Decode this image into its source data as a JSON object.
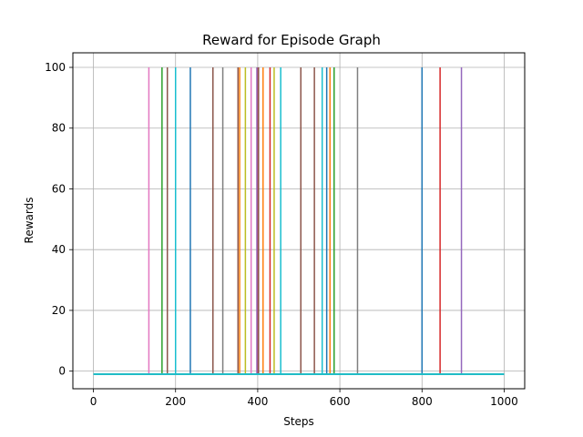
{
  "chart_data": {
    "type": "line",
    "title": "Reward for Episode Graph",
    "xlabel": "Steps",
    "ylabel": "Rewards",
    "xlim": [
      -50,
      1050
    ],
    "ylim": [
      -5.8,
      104.8
    ],
    "xticks": [
      0,
      200,
      400,
      600,
      800,
      1000
    ],
    "yticks": [
      0,
      20,
      40,
      60,
      80,
      100
    ],
    "grid": true,
    "legend": "none",
    "baseline": {
      "x_start": 0,
      "x_end": 1000,
      "y": -1
    },
    "spike_value": 100,
    "series": [
      {
        "color": "#1f77b4",
        "spike_step": 236
      },
      {
        "color": "#1f77b4",
        "spike_step": 568
      },
      {
        "color": "#1f77b4",
        "spike_step": 800
      },
      {
        "color": "#ff7f0e",
        "spike_step": 356
      },
      {
        "color": "#ff7f0e",
        "spike_step": 413
      },
      {
        "color": "#ff7f0e",
        "spike_step": 576
      },
      {
        "color": "#2ca02c",
        "spike_step": 167
      },
      {
        "color": "#2ca02c",
        "spike_step": 400
      },
      {
        "color": "#2ca02c",
        "spike_step": 586
      },
      {
        "color": "#d62728",
        "spike_step": 400
      },
      {
        "color": "#d62728",
        "spike_step": 430
      },
      {
        "color": "#d62728",
        "spike_step": 844
      },
      {
        "color": "#9467bd",
        "spike_step": 398
      },
      {
        "color": "#9467bd",
        "spike_step": 896
      },
      {
        "color": "#8c564b",
        "spike_step": 180
      },
      {
        "color": "#8c564b",
        "spike_step": 291
      },
      {
        "color": "#8c564b",
        "spike_step": 352
      },
      {
        "color": "#8c564b",
        "spike_step": 402
      },
      {
        "color": "#8c564b",
        "spike_step": 505
      },
      {
        "color": "#8c564b",
        "spike_step": 538
      },
      {
        "color": "#e377c2",
        "spike_step": 135
      },
      {
        "color": "#e377c2",
        "spike_step": 384
      },
      {
        "color": "#7f7f7f",
        "spike_step": 315
      },
      {
        "color": "#7f7f7f",
        "spike_step": 643
      },
      {
        "color": "#bcbd22",
        "spike_step": 370
      },
      {
        "color": "#bcbd22",
        "spike_step": 440
      },
      {
        "color": "#17becf",
        "spike_step": 200
      },
      {
        "color": "#17becf",
        "spike_step": 456
      },
      {
        "color": "#17becf",
        "spike_step": 557
      }
    ]
  }
}
